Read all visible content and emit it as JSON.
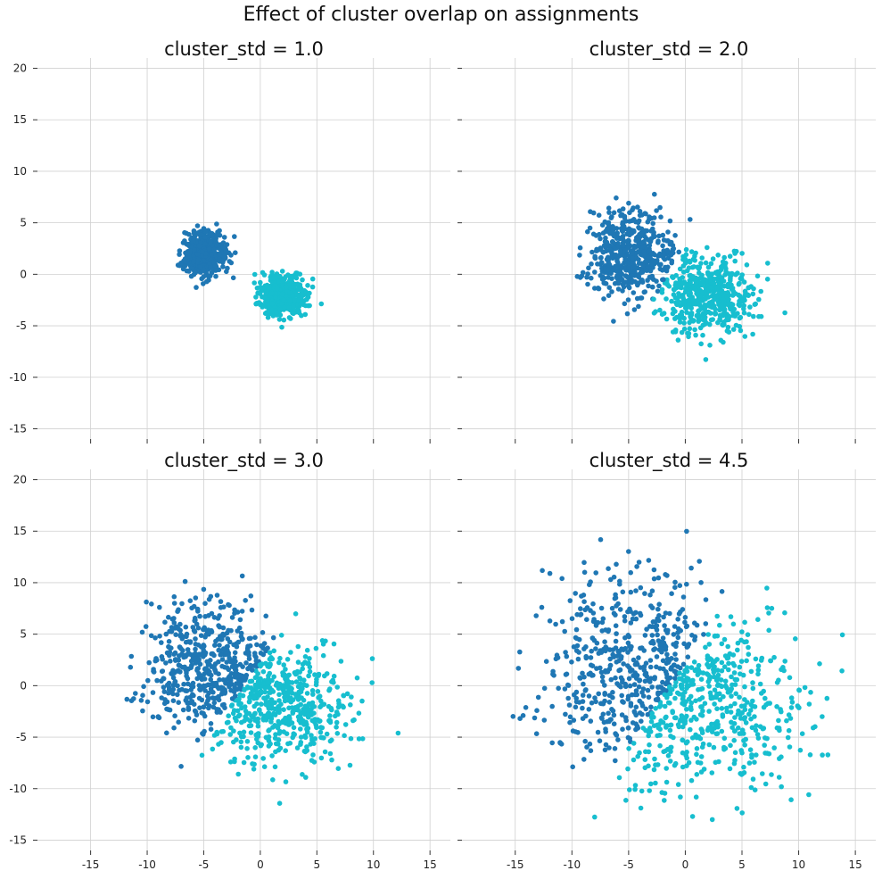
{
  "title": "Effect of cluster overlap on assignments",
  "colors": {
    "cluster_a": "#1f77b4",
    "cluster_b": "#17becf",
    "grid": "#d0d0d0"
  },
  "chart_data": [
    {
      "type": "scatter",
      "title": "cluster_std = 1.0",
      "cluster_std": 1.0,
      "xlim": [
        -19.7,
        16.8
      ],
      "ylim": [
        -16,
        21
      ],
      "xticks": [
        "-15",
        "-10",
        "-5",
        "0",
        "5",
        "10",
        "15"
      ],
      "yticks": [
        "20",
        "15",
        "10",
        "5",
        "0",
        "-5",
        "-10",
        "-15"
      ],
      "clusters": [
        {
          "center": [
            -5,
            2
          ],
          "n": 500,
          "color": "#1f77b4"
        },
        {
          "center": [
            2,
            -2
          ],
          "n": 500,
          "color": "#17becf"
        }
      ],
      "grid": true
    },
    {
      "type": "scatter",
      "title": "cluster_std = 2.0",
      "cluster_std": 2.0,
      "xlim": [
        -19.7,
        16.8
      ],
      "ylim": [
        -16,
        21
      ],
      "xticks": [
        "-15",
        "-10",
        "-5",
        "0",
        "5",
        "10",
        "15"
      ],
      "yticks": [
        "20",
        "15",
        "10",
        "5",
        "0",
        "-5",
        "-10",
        "-15"
      ],
      "clusters": [
        {
          "center": [
            -5,
            2
          ],
          "n": 500,
          "color": "#1f77b4"
        },
        {
          "center": [
            2,
            -2
          ],
          "n": 500,
          "color": "#17becf"
        }
      ],
      "grid": true
    },
    {
      "type": "scatter",
      "title": "cluster_std = 3.0",
      "cluster_std": 3.0,
      "xlim": [
        -19.7,
        16.8
      ],
      "ylim": [
        -16,
        21
      ],
      "xticks": [
        "-15",
        "-10",
        "-5",
        "0",
        "5",
        "10",
        "15"
      ],
      "yticks": [
        "20",
        "15",
        "10",
        "5",
        "0",
        "-5",
        "-10",
        "-15"
      ],
      "clusters": [
        {
          "center": [
            -5,
            2
          ],
          "n": 500,
          "color": "#1f77b4"
        },
        {
          "center": [
            2,
            -2
          ],
          "n": 500,
          "color": "#17becf"
        }
      ],
      "grid": true
    },
    {
      "type": "scatter",
      "title": "cluster_std = 4.5",
      "cluster_std": 4.5,
      "xlim": [
        -19.7,
        16.8
      ],
      "ylim": [
        -16,
        21
      ],
      "xticks": [
        "-15",
        "-10",
        "-5",
        "0",
        "5",
        "10",
        "15"
      ],
      "yticks": [
        "20",
        "15",
        "10",
        "5",
        "0",
        "-5",
        "-10",
        "-15"
      ],
      "clusters": [
        {
          "center": [
            -5,
            2
          ],
          "n": 500,
          "color": "#1f77b4"
        },
        {
          "center": [
            2,
            -2
          ],
          "n": 500,
          "color": "#17becf"
        }
      ],
      "grid": true
    }
  ]
}
